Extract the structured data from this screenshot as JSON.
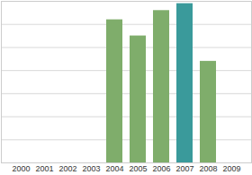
{
  "chart_data": {
    "type": "bar",
    "categories": [
      "2000",
      "2001",
      "2002",
      "2003",
      "2004",
      "2005",
      "2006",
      "2007",
      "2008",
      "2009"
    ],
    "values": [
      null,
      null,
      null,
      null,
      6.2,
      5.5,
      6.6,
      6.9,
      4.4,
      null
    ],
    "colors": [
      "#7fad6b",
      "#7fad6b",
      "#7fad6b",
      "#7fad6b",
      "#7fad6b",
      "#7fad6b",
      "#7fad6b",
      "#3a9a9b",
      "#7fad6b",
      "#7fad6b"
    ],
    "ylim": [
      0,
      7
    ],
    "yticks": [
      0,
      1,
      2,
      3,
      4,
      5,
      6,
      7
    ],
    "grid": true,
    "tick_labels": "x"
  }
}
